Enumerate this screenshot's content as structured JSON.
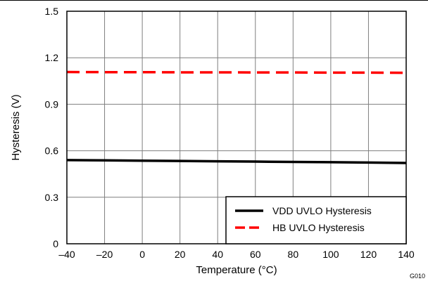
{
  "chart_data": {
    "type": "line",
    "xlabel": "Temperature (°C)",
    "ylabel": "Hysteresis (V)",
    "xlim": [
      -40,
      140
    ],
    "ylim": [
      0,
      1.5
    ],
    "x_ticks": [
      -40,
      -20,
      0,
      20,
      40,
      60,
      80,
      100,
      120,
      140
    ],
    "x_tick_labels": [
      "–40",
      "–20",
      "0",
      "20",
      "40",
      "60",
      "80",
      "100",
      "120",
      "140"
    ],
    "y_ticks": [
      0,
      0.3,
      0.6,
      0.9,
      1.2,
      1.5
    ],
    "y_tick_labels": [
      "0",
      "0.3",
      "0.6",
      "0.9",
      "1.2",
      "1.5"
    ],
    "grid": true,
    "legend_position": "bottom-right",
    "corner_label": "G010",
    "series": [
      {
        "name": "VDD UVLO Hysteresis",
        "color": "#000000",
        "style": "solid",
        "x": [
          -40,
          -20,
          0,
          20,
          40,
          60,
          80,
          100,
          120,
          140
        ],
        "values": [
          0.54,
          0.538,
          0.536,
          0.534,
          0.532,
          0.53,
          0.528,
          0.526,
          0.524,
          0.521
        ]
      },
      {
        "name": "HB UVLO Hysteresis",
        "color": "#ff0000",
        "style": "dashed",
        "x": [
          -40,
          -20,
          0,
          20,
          40,
          60,
          80,
          100,
          120,
          140
        ],
        "values": [
          1.108,
          1.107,
          1.107,
          1.106,
          1.106,
          1.105,
          1.105,
          1.104,
          1.104,
          1.103
        ]
      }
    ]
  }
}
